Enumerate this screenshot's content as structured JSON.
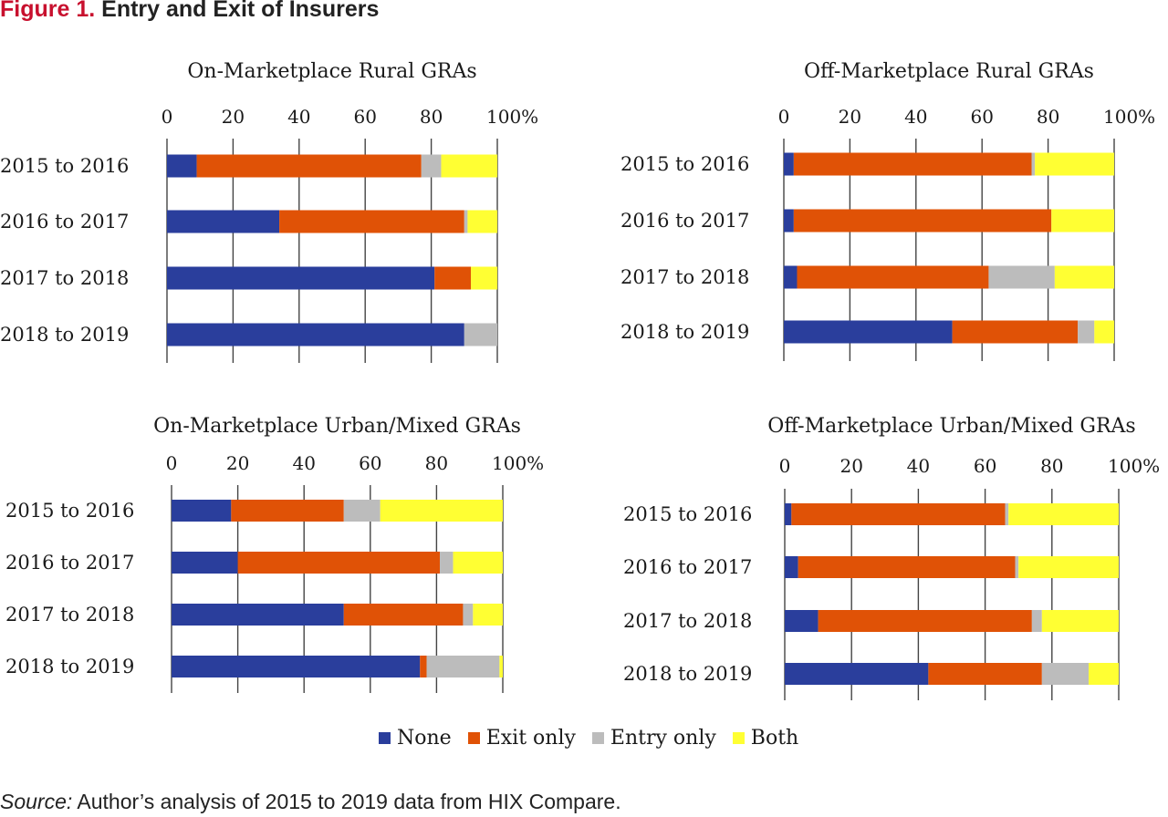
{
  "figure": {
    "label": "Figure 1.",
    "title": "Entry and Exit of Insurers",
    "source_label": "Source:",
    "source_text": "Author’s analysis of 2015 to 2019 data from HIX Compare."
  },
  "chart_data": [
    {
      "type": "bar",
      "orientation": "horizontal",
      "stacked": true,
      "title": "On-Marketplace Rural GRAs",
      "xlim": [
        0,
        100
      ],
      "xticks": [
        "0",
        "20",
        "40",
        "60",
        "80",
        "100%"
      ],
      "categories": [
        "2015 to 2016",
        "2016 to 2017",
        "2017 to 2018",
        "2018 to 2019"
      ],
      "series": [
        {
          "name": "None",
          "values": [
            9,
            34,
            81,
            90
          ]
        },
        {
          "name": "Exit only",
          "values": [
            68,
            56,
            11,
            0
          ]
        },
        {
          "name": "Entry only",
          "values": [
            6,
            1,
            0,
            10
          ]
        },
        {
          "name": "Both",
          "values": [
            17,
            9,
            8,
            0
          ]
        }
      ]
    },
    {
      "type": "bar",
      "orientation": "horizontal",
      "stacked": true,
      "title": "Off-Marketplace Rural GRAs",
      "xlim": [
        0,
        100
      ],
      "xticks": [
        "0",
        "20",
        "40",
        "60",
        "80",
        "100%"
      ],
      "categories": [
        "2015 to 2016",
        "2016 to 2017",
        "2017 to 2018",
        "2018 to 2019"
      ],
      "series": [
        {
          "name": "None",
          "values": [
            3,
            3,
            4,
            51
          ]
        },
        {
          "name": "Exit only",
          "values": [
            72,
            78,
            58,
            38
          ]
        },
        {
          "name": "Entry only",
          "values": [
            1,
            0,
            20,
            5
          ]
        },
        {
          "name": "Both",
          "values": [
            24,
            19,
            18,
            6
          ]
        }
      ]
    },
    {
      "type": "bar",
      "orientation": "horizontal",
      "stacked": true,
      "title": "On-Marketplace Urban/Mixed GRAs",
      "xlim": [
        0,
        100
      ],
      "xticks": [
        "0",
        "20",
        "40",
        "60",
        "80",
        "100%"
      ],
      "categories": [
        "2015 to 2016",
        "2016 to 2017",
        "2017 to 2018",
        "2018 to 2019"
      ],
      "series": [
        {
          "name": "None",
          "values": [
            18,
            20,
            52,
            75
          ]
        },
        {
          "name": "Exit only",
          "values": [
            34,
            61,
            36,
            2
          ]
        },
        {
          "name": "Entry only",
          "values": [
            11,
            4,
            3,
            22
          ]
        },
        {
          "name": "Both",
          "values": [
            37,
            15,
            9,
            1
          ]
        }
      ]
    },
    {
      "type": "bar",
      "orientation": "horizontal",
      "stacked": true,
      "title": "Off-Marketplace Urban/Mixed GRAs",
      "xlim": [
        0,
        100
      ],
      "xticks": [
        "0",
        "20",
        "40",
        "60",
        "80",
        "100%"
      ],
      "categories": [
        "2015 to 2016",
        "2016 to 2017",
        "2017 to 2018",
        "2018 to 2019"
      ],
      "series": [
        {
          "name": "None",
          "values": [
            2,
            4,
            10,
            43
          ]
        },
        {
          "name": "Exit only",
          "values": [
            64,
            65,
            64,
            34
          ]
        },
        {
          "name": "Entry only",
          "values": [
            1,
            1,
            3,
            14
          ]
        },
        {
          "name": "Both",
          "values": [
            33,
            30,
            23,
            9
          ]
        }
      ]
    }
  ],
  "legend": {
    "position": "bottom-center",
    "items": [
      {
        "label": "None",
        "color": "#2a3e9c"
      },
      {
        "label": "Exit only",
        "color": "#e05206"
      },
      {
        "label": "Entry only",
        "color": "#bcbcbc"
      },
      {
        "label": "Both",
        "color": "#ffff33"
      }
    ]
  }
}
